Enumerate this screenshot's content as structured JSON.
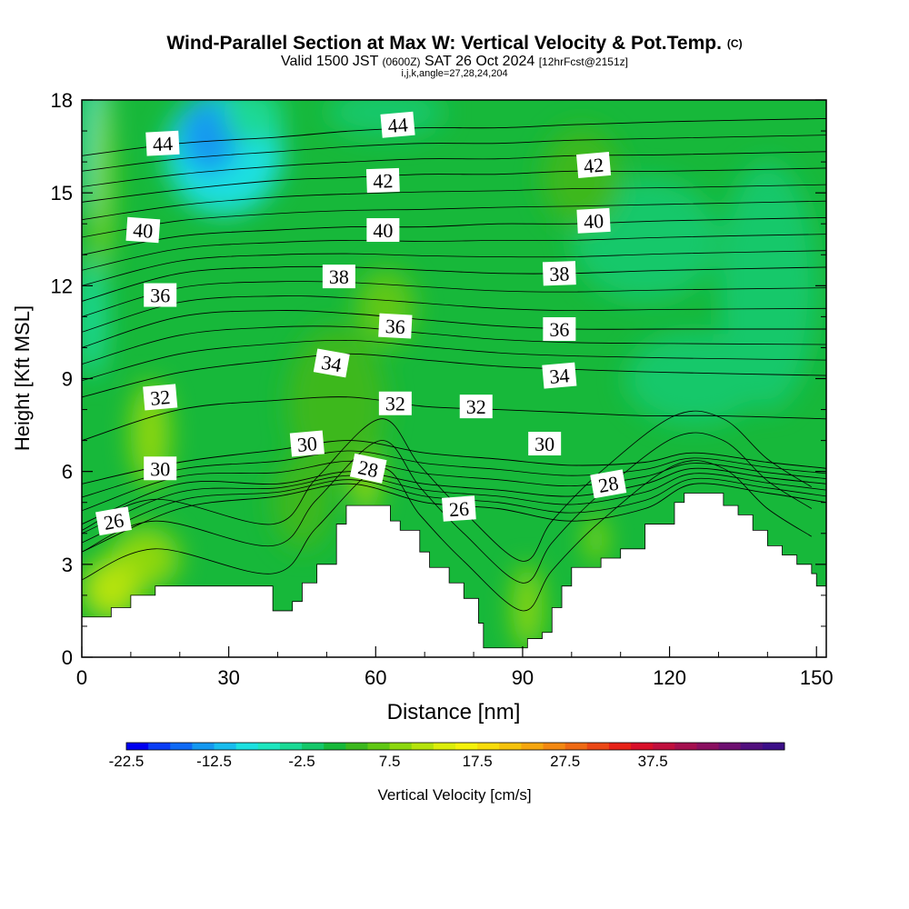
{
  "header": {
    "title": "Wind-Parallel Section at Max W: Vertical Velocity & Pot.Temp.",
    "copyright": "(C)",
    "valid_prefix": "Valid 1500 JST",
    "valid_utc": "(0600Z)",
    "valid_date": "SAT 26 Oct 2024",
    "forecast": "[12hrFcst@2151z]",
    "ijk": "i,j,k,angle=27,28,24,204"
  },
  "chart_data": {
    "type": "heatmap",
    "xlabel": "Distance [nm]",
    "ylabel": "Height [Kft MSL]",
    "xlim": [
      0,
      152
    ],
    "ylim": [
      0,
      18
    ],
    "x_ticks": [
      "0",
      "30",
      "60",
      "90",
      "120",
      "150"
    ],
    "y_ticks": [
      "0",
      "3",
      "6",
      "9",
      "12",
      "15",
      "18"
    ],
    "x_tick_values": [
      0,
      30,
      60,
      90,
      120,
      150
    ],
    "y_tick_values": [
      0,
      3,
      6,
      9,
      12,
      15,
      18
    ],
    "background_w": 1.0,
    "terrain": [
      [
        0,
        1.3
      ],
      [
        6,
        1.6
      ],
      [
        10,
        2.0
      ],
      [
        15,
        2.3
      ],
      [
        28,
        2.3
      ],
      [
        37,
        2.3
      ],
      [
        39,
        1.5
      ],
      [
        43,
        1.8
      ],
      [
        45,
        2.4
      ],
      [
        48,
        3.0
      ],
      [
        52,
        4.3
      ],
      [
        54,
        4.9
      ],
      [
        61,
        4.9
      ],
      [
        63,
        4.4
      ],
      [
        65,
        4.1
      ],
      [
        69,
        3.4
      ],
      [
        71,
        2.9
      ],
      [
        75,
        2.4
      ],
      [
        78,
        1.9
      ],
      [
        81,
        1.1
      ],
      [
        82,
        0.3
      ],
      [
        90,
        0.3
      ],
      [
        91,
        0.6
      ],
      [
        94,
        0.8
      ],
      [
        96,
        1.6
      ],
      [
        98,
        2.3
      ],
      [
        100,
        2.9
      ],
      [
        106,
        3.2
      ],
      [
        110,
        3.5
      ],
      [
        115,
        4.3
      ],
      [
        121,
        5.0
      ],
      [
        123,
        5.3
      ],
      [
        128,
        5.3
      ],
      [
        131,
        4.9
      ],
      [
        134,
        4.6
      ],
      [
        137,
        4.1
      ],
      [
        140,
        3.6
      ],
      [
        143,
        3.3
      ],
      [
        146,
        3.0
      ],
      [
        149,
        2.7
      ],
      [
        150,
        2.3
      ],
      [
        152,
        2.3
      ]
    ],
    "vv_blobs": [
      {
        "x": 3,
        "y": 16.5,
        "rx": 3,
        "ry": 2.5,
        "w": -8
      },
      {
        "x": 2,
        "y": 11,
        "rx": 3,
        "ry": 2,
        "w": -4
      },
      {
        "x": 29,
        "y": 16.3,
        "rx": 12,
        "ry": 2.0,
        "w": -9
      },
      {
        "x": 26,
        "y": 16.8,
        "rx": 6,
        "ry": 1.2,
        "w": -14
      },
      {
        "x": 35,
        "y": 17.5,
        "rx": 6,
        "ry": 0.9,
        "w": -4
      },
      {
        "x": 62,
        "y": 17.6,
        "rx": 12,
        "ry": 0.8,
        "w": -2
      },
      {
        "x": 140,
        "y": 12,
        "rx": 10,
        "ry": 4,
        "w": -2
      },
      {
        "x": 125,
        "y": 9,
        "rx": 14,
        "ry": 1.5,
        "w": -2
      },
      {
        "x": 115,
        "y": 13.5,
        "rx": 15,
        "ry": 2,
        "w": -2
      },
      {
        "x": 4,
        "y": 15.5,
        "rx": 2,
        "ry": 3,
        "w": 9
      },
      {
        "x": 14,
        "y": 7.2,
        "rx": 4,
        "ry": 1.7,
        "w": 9
      },
      {
        "x": 13,
        "y": 3.2,
        "rx": 7,
        "ry": 1.0,
        "w": 8
      },
      {
        "x": 6,
        "y": 2.2,
        "rx": 6,
        "ry": 1.0,
        "w": 11
      },
      {
        "x": 58,
        "y": 5.8,
        "rx": 3,
        "ry": 1.2,
        "w": 8
      },
      {
        "x": 91,
        "y": 1.6,
        "rx": 3,
        "ry": 1.4,
        "w": 9
      },
      {
        "x": 105,
        "y": 3.8,
        "rx": 2,
        "ry": 0.8,
        "w": 8
      },
      {
        "x": 62,
        "y": 11.3,
        "rx": 6,
        "ry": 1.2,
        "w": 5
      },
      {
        "x": 52,
        "y": 8.2,
        "rx": 10,
        "ry": 2.5,
        "w": 4
      },
      {
        "x": 102,
        "y": 15.5,
        "rx": 8,
        "ry": 1.6,
        "w": 4
      },
      {
        "x": 45,
        "y": 5,
        "rx": 6,
        "ry": 1.5,
        "w": 4
      }
    ],
    "contours": [
      {
        "theta": 26,
        "label": "26",
        "pts": [
          [
            0,
            3.4
          ],
          [
            20,
            4.8
          ],
          [
            40,
            5.2
          ],
          [
            55,
            5.6
          ],
          [
            70,
            5.0
          ],
          [
            85,
            4.8
          ],
          [
            100,
            4.4
          ],
          [
            115,
            4.8
          ],
          [
            125,
            5.6
          ],
          [
            140,
            5.3
          ],
          [
            152,
            5.0
          ]
        ]
      },
      {
        "theta": 28,
        "label": "28",
        "pts": [
          [
            0,
            4.3
          ],
          [
            20,
            5.6
          ],
          [
            40,
            5.6
          ],
          [
            55,
            6.0
          ],
          [
            70,
            5.6
          ],
          [
            85,
            5.4
          ],
          [
            100,
            5.2
          ],
          [
            115,
            5.6
          ],
          [
            125,
            6.1
          ],
          [
            140,
            5.8
          ],
          [
            152,
            5.6
          ]
        ]
      },
      {
        "theta": 30,
        "label": "30",
        "pts": [
          [
            0,
            5.6
          ],
          [
            20,
            6.3
          ],
          [
            40,
            6.7
          ],
          [
            55,
            7.0
          ],
          [
            70,
            6.6
          ],
          [
            85,
            6.4
          ],
          [
            100,
            6.2
          ],
          [
            115,
            6.3
          ],
          [
            125,
            6.6
          ],
          [
            140,
            6.3
          ],
          [
            152,
            6.1
          ]
        ]
      },
      {
        "theta": 32,
        "label": "32",
        "pts": [
          [
            0,
            7.0
          ],
          [
            20,
            8.0
          ],
          [
            40,
            8.3
          ],
          [
            55,
            8.4
          ],
          [
            70,
            8.1
          ],
          [
            85,
            8.0
          ],
          [
            100,
            7.9
          ],
          [
            115,
            7.8
          ],
          [
            130,
            7.8
          ],
          [
            152,
            7.7
          ]
        ]
      },
      {
        "theta": 34,
        "label": "34",
        "pts": [
          [
            0,
            8.4
          ],
          [
            20,
            9.2
          ],
          [
            40,
            9.6
          ],
          [
            55,
            9.8
          ],
          [
            70,
            9.6
          ],
          [
            85,
            9.4
          ],
          [
            100,
            9.3
          ],
          [
            120,
            9.2
          ],
          [
            152,
            9.1
          ]
        ]
      },
      {
        "theta": 36,
        "label": "36",
        "pts": [
          [
            0,
            10.0
          ],
          [
            20,
            11.0
          ],
          [
            40,
            11.2
          ],
          [
            55,
            11.1
          ],
          [
            70,
            10.9
          ],
          [
            85,
            10.7
          ],
          [
            100,
            10.6
          ],
          [
            120,
            10.6
          ],
          [
            152,
            10.6
          ]
        ]
      },
      {
        "theta": 38,
        "label": "38",
        "pts": [
          [
            0,
            11.5
          ],
          [
            20,
            12.4
          ],
          [
            40,
            12.6
          ],
          [
            55,
            12.6
          ],
          [
            70,
            12.5
          ],
          [
            85,
            12.4
          ],
          [
            100,
            12.4
          ],
          [
            120,
            12.5
          ],
          [
            152,
            12.6
          ]
        ]
      },
      {
        "theta": 40,
        "label": "40",
        "pts": [
          [
            0,
            13.0
          ],
          [
            20,
            13.6
          ],
          [
            40,
            13.8
          ],
          [
            55,
            13.9
          ],
          [
            70,
            13.9
          ],
          [
            85,
            14.0
          ],
          [
            100,
            14.0
          ],
          [
            120,
            14.1
          ],
          [
            152,
            14.2
          ]
        ]
      },
      {
        "theta": 42,
        "label": "42",
        "pts": [
          [
            0,
            14.7
          ],
          [
            20,
            15.1
          ],
          [
            40,
            15.4
          ],
          [
            55,
            15.5
          ],
          [
            70,
            15.6
          ],
          [
            85,
            15.6
          ],
          [
            100,
            15.7
          ],
          [
            120,
            15.7
          ],
          [
            152,
            15.8
          ]
        ]
      },
      {
        "theta": 44,
        "label": "44",
        "pts": [
          [
            0,
            16.2
          ],
          [
            20,
            16.6
          ],
          [
            40,
            16.8
          ],
          [
            55,
            17.0
          ],
          [
            70,
            17.1
          ],
          [
            85,
            17.1
          ],
          [
            100,
            17.2
          ],
          [
            120,
            17.3
          ],
          [
            152,
            17.4
          ]
        ]
      }
    ],
    "labels": [
      {
        "text": "44",
        "x": 16.5,
        "y": 16.6,
        "rot": -3
      },
      {
        "text": "44",
        "x": 64.5,
        "y": 17.2,
        "rot": -5
      },
      {
        "text": "42",
        "x": 61.5,
        "y": 15.4,
        "rot": -2
      },
      {
        "text": "42",
        "x": 104.5,
        "y": 15.9,
        "rot": -5
      },
      {
        "text": "40",
        "x": 12.5,
        "y": 13.8,
        "rot": 4
      },
      {
        "text": "40",
        "x": 61.5,
        "y": 13.8,
        "rot": 0
      },
      {
        "text": "40",
        "x": 104.5,
        "y": 14.1,
        "rot": -3
      },
      {
        "text": "38",
        "x": 52.5,
        "y": 12.3,
        "rot": 0
      },
      {
        "text": "38",
        "x": 97.5,
        "y": 12.4,
        "rot": -2
      },
      {
        "text": "36",
        "x": 16.0,
        "y": 11.7,
        "rot": 0
      },
      {
        "text": "36",
        "x": 64.0,
        "y": 10.7,
        "rot": 3
      },
      {
        "text": "36",
        "x": 97.5,
        "y": 10.6,
        "rot": 0
      },
      {
        "text": "34",
        "x": 51.0,
        "y": 9.5,
        "rot": 10
      },
      {
        "text": "34",
        "x": 97.5,
        "y": 9.1,
        "rot": -5
      },
      {
        "text": "32",
        "x": 16.0,
        "y": 8.4,
        "rot": -5
      },
      {
        "text": "32",
        "x": 64.0,
        "y": 8.2,
        "rot": 0
      },
      {
        "text": "32",
        "x": 80.5,
        "y": 8.1,
        "rot": 0
      },
      {
        "text": "30",
        "x": 46.0,
        "y": 6.9,
        "rot": -5
      },
      {
        "text": "30",
        "x": 16.0,
        "y": 6.1,
        "rot": 0
      },
      {
        "text": "30",
        "x": 94.5,
        "y": 6.9,
        "rot": 0
      },
      {
        "text": "28",
        "x": 58.5,
        "y": 6.1,
        "rot": 12
      },
      {
        "text": "28",
        "x": 107.5,
        "y": 5.6,
        "rot": -10
      },
      {
        "text": "26",
        "x": 6.5,
        "y": 4.4,
        "rot": -10
      },
      {
        "text": "26",
        "x": 77.0,
        "y": 4.8,
        "rot": -4
      }
    ],
    "colorbar": {
      "label": "Vertical Velocity [cm/s]",
      "min": -22.5,
      "step": 2.5,
      "colors": [
        "#0000f0",
        "#0a3df5",
        "#0f6af5",
        "#1498f0",
        "#18bcee",
        "#1ce0e0",
        "#1de6bf",
        "#1ad995",
        "#15c86a",
        "#17b83a",
        "#3cb81e",
        "#60c814",
        "#8cd70e",
        "#b5e30c",
        "#dcee0a",
        "#f5f20a",
        "#f8dc0a",
        "#f5c20c",
        "#f5a60f",
        "#f38812",
        "#ef6a14",
        "#eb4816",
        "#e62218",
        "#d8102a",
        "#c0103e",
        "#a5104f",
        "#8a1060",
        "#6e1070",
        "#52107e",
        "#3c0f88"
      ],
      "tick_labels": [
        "-22.5",
        "-12.5",
        "-2.5",
        "7.5",
        "17.5",
        "27.5",
        "37.5"
      ]
    }
  }
}
